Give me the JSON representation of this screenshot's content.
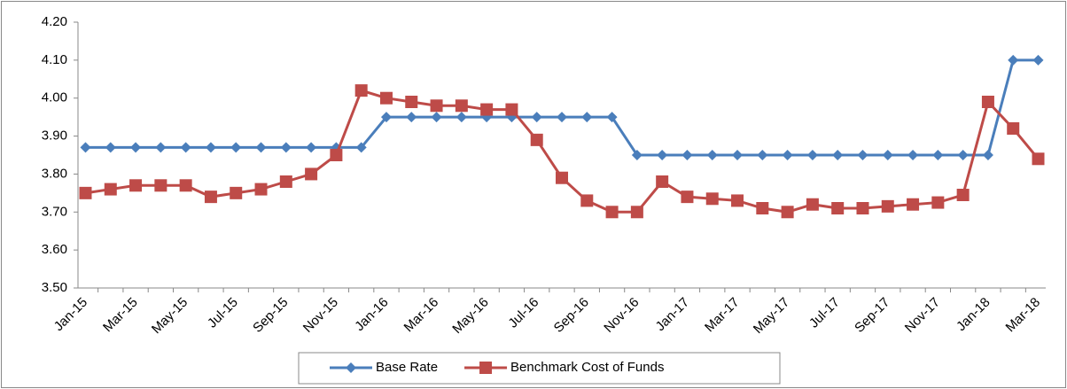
{
  "chart_data": {
    "type": "line",
    "categories": [
      "Jan-15",
      null,
      "Mar-15",
      null,
      "May-15",
      null,
      "Jul-15",
      null,
      "Sep-15",
      null,
      "Nov-15",
      null,
      "Jan-16",
      null,
      "Mar-16",
      null,
      "May-16",
      null,
      "Jul-16",
      null,
      "Sep-16",
      null,
      "Nov-16",
      null,
      "Jan-17",
      null,
      "Mar-17",
      null,
      "May-17",
      null,
      "Jul-17",
      null,
      "Sep-17",
      null,
      "Nov-17",
      null,
      "Jan-18",
      null,
      "Mar-18"
    ],
    "series": [
      {
        "name": "Base Rate",
        "color": "#4a7ebb",
        "marker": "diamond",
        "values": [
          3.87,
          3.87,
          3.87,
          3.87,
          3.87,
          3.87,
          3.87,
          3.87,
          3.87,
          3.87,
          3.87,
          3.87,
          3.95,
          3.95,
          3.95,
          3.95,
          3.95,
          3.95,
          3.95,
          3.95,
          3.95,
          3.95,
          3.85,
          3.85,
          3.85,
          3.85,
          3.85,
          3.85,
          3.85,
          3.85,
          3.85,
          3.85,
          3.85,
          3.85,
          3.85,
          3.85,
          3.85,
          4.1,
          4.1
        ]
      },
      {
        "name": "Benchmark Cost of Funds",
        "color": "#be4b48",
        "marker": "square",
        "values": [
          3.75,
          3.76,
          3.77,
          3.77,
          3.77,
          3.74,
          3.75,
          3.76,
          3.78,
          3.8,
          3.85,
          4.02,
          4.0,
          3.99,
          3.98,
          3.98,
          3.97,
          3.97,
          3.89,
          3.79,
          3.73,
          3.7,
          3.7,
          3.78,
          3.74,
          3.735,
          3.73,
          3.71,
          3.7,
          3.72,
          3.71,
          3.71,
          3.715,
          3.72,
          3.725,
          3.745,
          3.99,
          3.92,
          3.84
        ]
      }
    ],
    "ylim": [
      3.5,
      4.2
    ],
    "yticks": [
      {
        "value": 3.5,
        "label": "3.50"
      },
      {
        "value": 3.6,
        "label": "3.60"
      },
      {
        "value": 3.7,
        "label": "3.70"
      },
      {
        "value": 3.8,
        "label": "3.80"
      },
      {
        "value": 3.9,
        "label": "3.90"
      },
      {
        "value": 4.0,
        "label": "4.00"
      },
      {
        "value": 4.1,
        "label": "4.10"
      },
      {
        "value": 4.2,
        "label": "4.20"
      }
    ],
    "grid": false,
    "legend": "bottom"
  }
}
